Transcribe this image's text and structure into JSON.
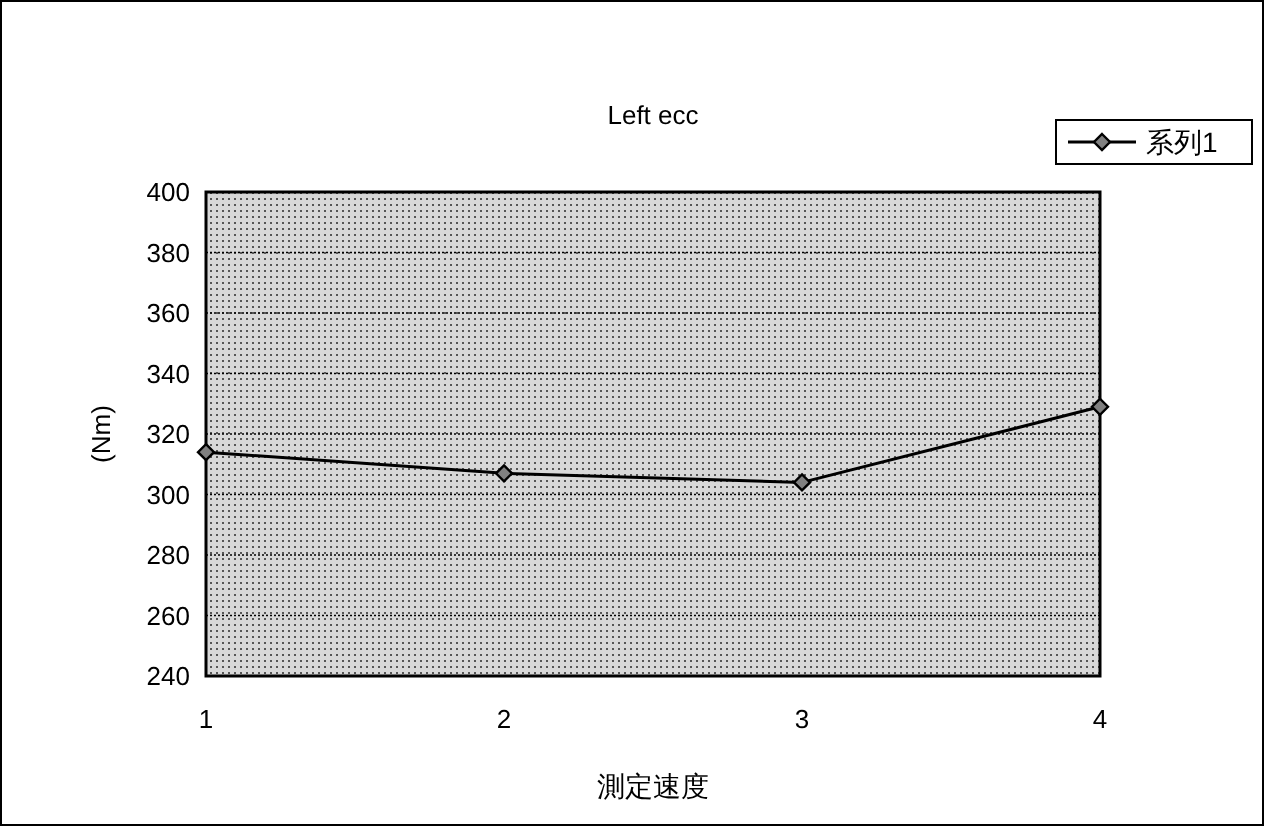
{
  "chart_data": {
    "type": "line",
    "title": "Left ecc",
    "xlabel": "測定速度",
    "ylabel": "(Nm)",
    "categories": [
      "1",
      "2",
      "3",
      "4"
    ],
    "series": [
      {
        "name": "系列1",
        "color": "#000000",
        "values": [
          314,
          307,
          304,
          329
        ]
      }
    ],
    "ylim": [
      240,
      400
    ],
    "yticks": [
      240,
      260,
      280,
      300,
      320,
      340,
      360,
      380,
      400
    ],
    "grid": "y",
    "legend": "top right",
    "marker": "diamond",
    "line_style": "solid"
  }
}
